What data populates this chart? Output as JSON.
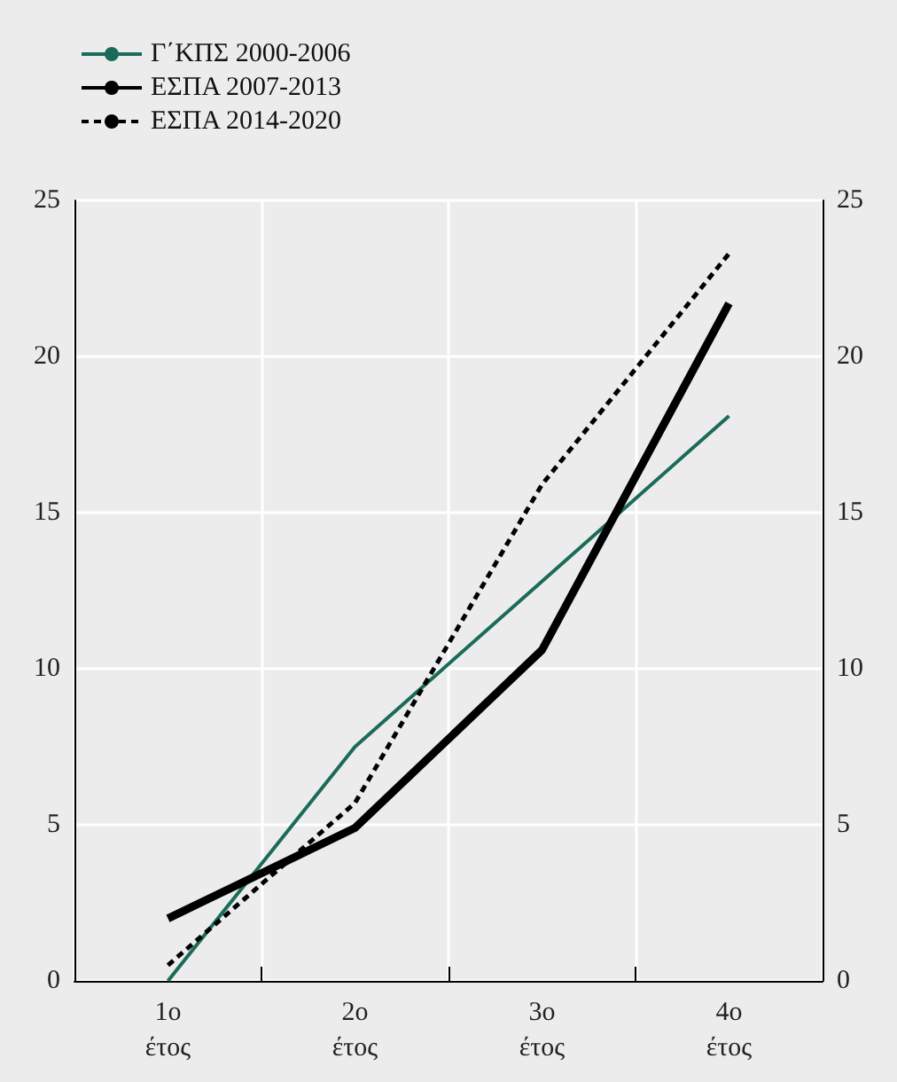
{
  "chart_data": {
    "type": "line",
    "categories": [
      "1o\nέτος",
      "2o\nέτος",
      "3o\nέτος",
      "4o\nέτος"
    ],
    "series": [
      {
        "name": "Γ΄ΚΠΣ 2000-2006",
        "color": "#1a6b5a",
        "line_style": "solid",
        "values": [
          0,
          7.5,
          12.8,
          18.1
        ]
      },
      {
        "name": "ΕΣΠΑ 2007-2013",
        "color": "#000000",
        "line_style": "solid",
        "values": [
          2.0,
          4.9,
          10.6,
          21.7
        ]
      },
      {
        "name": "ΕΣΠΑ 2014-2020",
        "color": "#000000",
        "line_style": "dashed",
        "values": [
          0.5,
          5.7,
          15.9,
          23.3
        ]
      }
    ],
    "ylim": [
      0,
      25
    ],
    "yticks": [
      0,
      5,
      10,
      15,
      20,
      25
    ],
    "y2lim": [
      0,
      25
    ],
    "y2ticks": [
      0,
      5,
      10,
      15,
      20,
      25
    ],
    "grid": true,
    "legend": "top left",
    "marker": "none"
  }
}
